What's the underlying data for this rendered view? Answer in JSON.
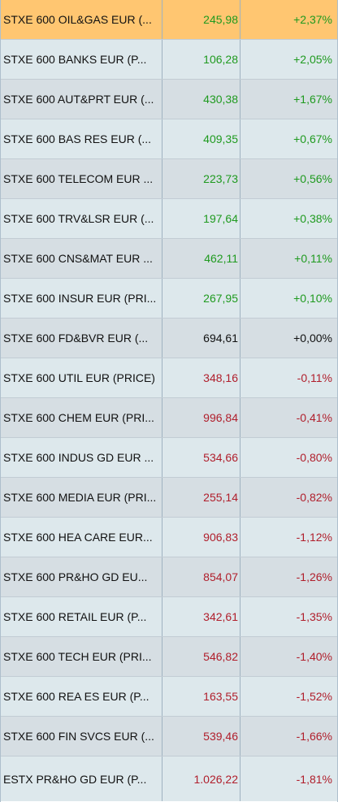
{
  "rows": [
    {
      "name": "STXE 600 OIL&GAS EUR (...",
      "price": "245,98",
      "change": "+2,37%",
      "trend": "pos",
      "selected": true
    },
    {
      "name": "STXE 600 BANKS EUR (P...",
      "price": "106,28",
      "change": "+2,05%",
      "trend": "pos"
    },
    {
      "name": "STXE 600 AUT&PRT EUR (...",
      "price": "430,38",
      "change": "+1,67%",
      "trend": "pos"
    },
    {
      "name": "STXE 600 BAS RES EUR (...",
      "price": "409,35",
      "change": "+0,67%",
      "trend": "pos"
    },
    {
      "name": "STXE 600 TELECOM EUR ...",
      "price": "223,73",
      "change": "+0,56%",
      "trend": "pos"
    },
    {
      "name": "STXE 600 TRV&LSR EUR (...",
      "price": "197,64",
      "change": "+0,38%",
      "trend": "pos"
    },
    {
      "name": "STXE 600 CNS&MAT EUR ...",
      "price": "462,11",
      "change": "+0,11%",
      "trend": "pos"
    },
    {
      "name": "STXE 600 INSUR EUR (PRI...",
      "price": "267,95",
      "change": "+0,10%",
      "trend": "pos"
    },
    {
      "name": "STXE 600 FD&BVR EUR (...",
      "price": "694,61",
      "change": "+0,00%",
      "trend": "flat"
    },
    {
      "name": "STXE 600 UTIL EUR (PRICE)",
      "price": "348,16",
      "change": "-0,11%",
      "trend": "neg"
    },
    {
      "name": "STXE 600 CHEM EUR (PRI...",
      "price": "996,84",
      "change": "-0,41%",
      "trend": "neg"
    },
    {
      "name": "STXE 600 INDUS GD EUR ...",
      "price": "534,66",
      "change": "-0,80%",
      "trend": "neg"
    },
    {
      "name": "STXE 600 MEDIA EUR (PRI...",
      "price": "255,14",
      "change": "-0,82%",
      "trend": "neg"
    },
    {
      "name": "STXE 600 HEA CARE EUR...",
      "price": "906,83",
      "change": "-1,12%",
      "trend": "neg"
    },
    {
      "name": "STXE 600 PR&HO GD EU...",
      "price": "854,07",
      "change": "-1,26%",
      "trend": "neg"
    },
    {
      "name": "STXE 600 RETAIL EUR (P...",
      "price": "342,61",
      "change": "-1,35%",
      "trend": "neg"
    },
    {
      "name": "STXE 600 TECH EUR (PRI...",
      "price": "546,82",
      "change": "-1,40%",
      "trend": "neg"
    },
    {
      "name": "STXE 600 REA ES EUR (P...",
      "price": "163,55",
      "change": "-1,52%",
      "trend": "neg"
    },
    {
      "name": "STXE 600 FIN SVCS EUR (...",
      "price": "539,46",
      "change": "-1,66%",
      "trend": "neg"
    },
    {
      "name": "ESTX PR&HO GD EUR (P...",
      "price": "1.026,22",
      "change": "-1,81%",
      "trend": "neg"
    }
  ],
  "colors": {
    "positive": "#1f9a1f",
    "negative": "#b01e2b",
    "selected_row": "#ffc671"
  }
}
